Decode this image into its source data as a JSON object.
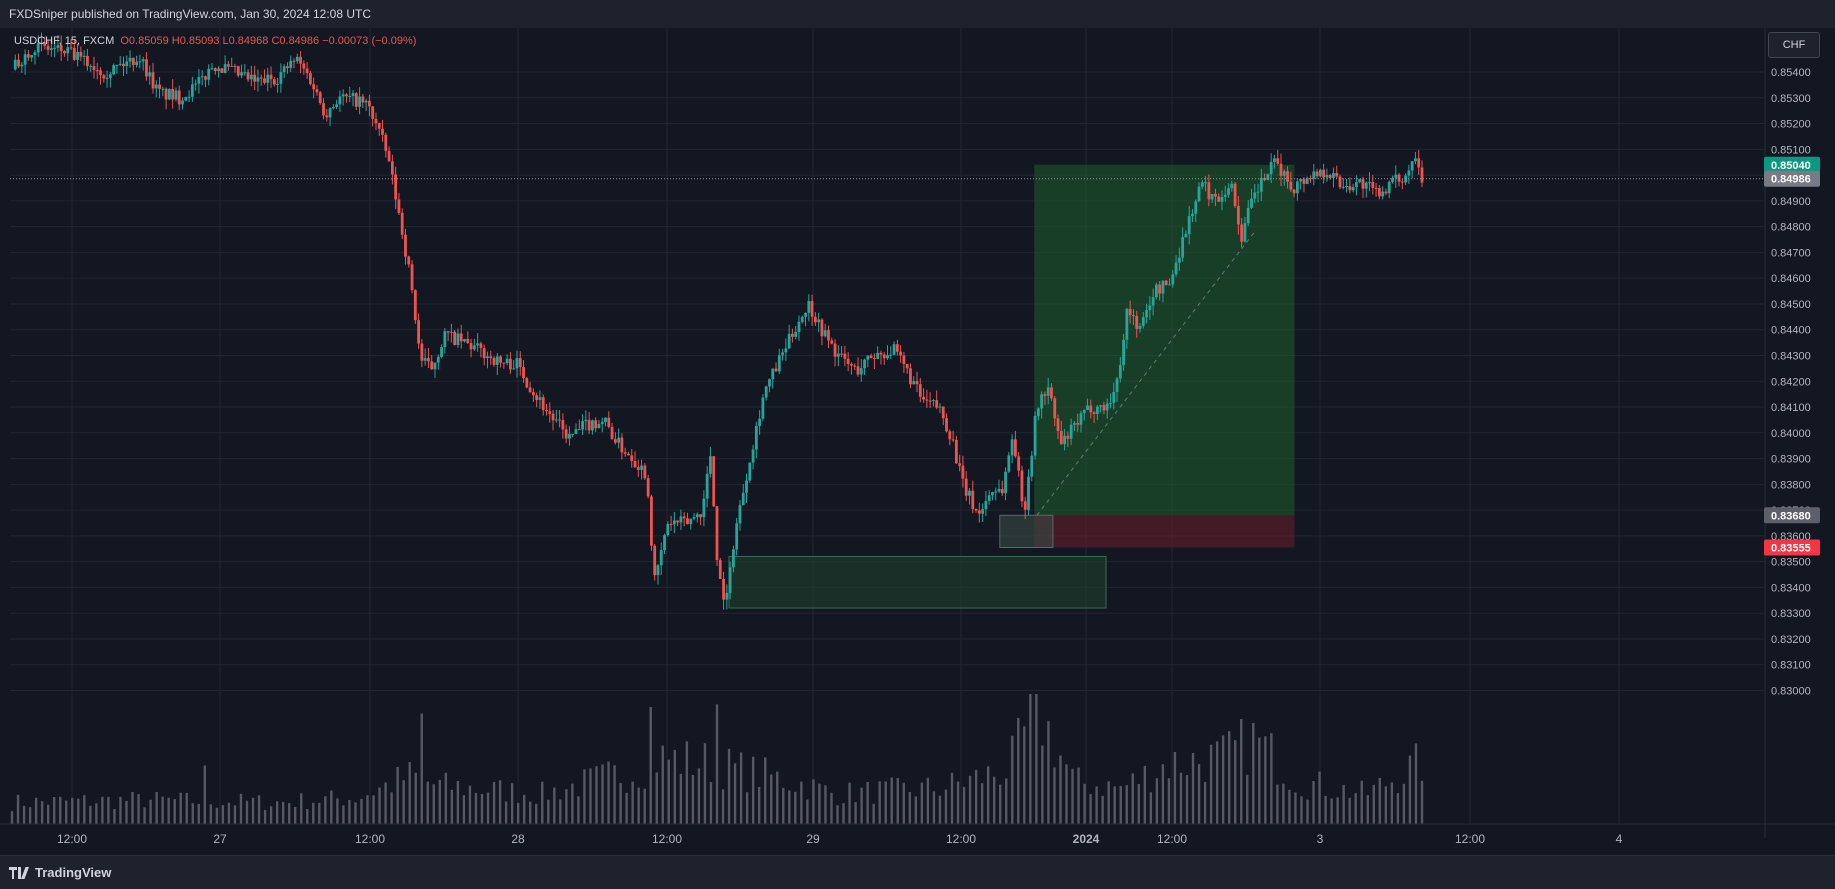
{
  "header": {
    "published": "FXDSniper published on TradingView.com, Jan 30, 2024 12:08 UTC"
  },
  "legend": {
    "symbol": "USDCHF, 15, FXCM",
    "ohlc": "O0.85059 H0.85093 L0.84968 C0.84986 −0.00073 (−0.09%)"
  },
  "currency_button": "CHF",
  "footer": {
    "logo_text": "TradingView"
  },
  "colors": {
    "background": "#131722",
    "up": "#26a69a",
    "down": "#ef5350",
    "grid": "#232733",
    "profit_zone": "#1f5e2d",
    "loss_zone": "#6b1f29",
    "take_profit_label": "#089981",
    "stop_label": "#f23645",
    "last_price_label": "#787b86",
    "volume": "#5d606b"
  },
  "chart_data": {
    "type": "candlestick",
    "symbol": "USDCHF",
    "timeframe": "15",
    "ylim": [
      0.8292,
      0.8555
    ],
    "y_ticks": [
      "0.85400",
      "0.85300",
      "0.85200",
      "0.85100",
      "0.85000",
      "0.84900",
      "0.84800",
      "0.84700",
      "0.84600",
      "0.84500",
      "0.84400",
      "0.84300",
      "0.84200",
      "0.84100",
      "0.84000",
      "0.83900",
      "0.83800",
      "0.83700",
      "0.83600",
      "0.83500",
      "0.83400",
      "0.83300",
      "0.83200",
      "0.83100",
      "0.83000"
    ],
    "x_ticks": [
      "12:00",
      "27",
      "12:00",
      "28",
      "12:00",
      "29",
      "12:00",
      "2024",
      "12:00",
      "3",
      "12:00",
      "4"
    ],
    "bold_x_ticks": [
      "2024"
    ],
    "price_labels": [
      {
        "name": "take-profit",
        "value": "0.85040",
        "price": 0.8504
      },
      {
        "name": "last-price",
        "value": "0.84986",
        "price": 0.84986
      },
      {
        "name": "entry",
        "value": "0.83680",
        "price": 0.8368
      },
      {
        "name": "stop-loss",
        "value": "0.83555",
        "price": 0.83555
      }
    ],
    "close_path": [
      {
        "t": 0,
        "p": 0.8541
      },
      {
        "t": 0.8,
        "p": 0.855
      },
      {
        "t": 2,
        "p": 0.8548
      },
      {
        "t": 3.5,
        "p": 0.854
      },
      {
        "t": 4.8,
        "p": 0.8546
      },
      {
        "t": 5.5,
        "p": 0.8532
      },
      {
        "t": 6.3,
        "p": 0.853
      },
      {
        "t": 7,
        "p": 0.8535
      },
      {
        "t": 7.6,
        "p": 0.8543
      },
      {
        "t": 8.3,
        "p": 0.854
      },
      {
        "t": 9.2,
        "p": 0.8536
      },
      {
        "t": 10,
        "p": 0.8538
      },
      {
        "t": 10.7,
        "p": 0.8545
      },
      {
        "t": 11.2,
        "p": 0.8538
      },
      {
        "t": 11.8,
        "p": 0.8524
      },
      {
        "t": 12.3,
        "p": 0.853
      },
      {
        "t": 13,
        "p": 0.8529
      },
      {
        "t": 13.4,
        "p": 0.8527
      },
      {
        "t": 13.8,
        "p": 0.8518
      },
      {
        "t": 14.2,
        "p": 0.8505
      },
      {
        "t": 14.7,
        "p": 0.8478
      },
      {
        "t": 15,
        "p": 0.846
      },
      {
        "t": 15.4,
        "p": 0.8428
      },
      {
        "t": 15.8,
        "p": 0.8425
      },
      {
        "t": 16.3,
        "p": 0.8438
      },
      {
        "t": 17,
        "p": 0.8435
      },
      {
        "t": 17.6,
        "p": 0.8432
      },
      {
        "t": 18.4,
        "p": 0.8427
      },
      {
        "t": 19,
        "p": 0.8427
      },
      {
        "t": 19.7,
        "p": 0.8415
      },
      {
        "t": 20.4,
        "p": 0.8405
      },
      {
        "t": 21,
        "p": 0.8398
      },
      {
        "t": 21.6,
        "p": 0.8403
      },
      {
        "t": 22.3,
        "p": 0.8405
      },
      {
        "t": 22.8,
        "p": 0.8396
      },
      {
        "t": 23.4,
        "p": 0.839
      },
      {
        "t": 23.9,
        "p": 0.8384
      },
      {
        "t": 24.2,
        "p": 0.8342
      },
      {
        "t": 24.7,
        "p": 0.8365
      },
      {
        "t": 25.4,
        "p": 0.8365
      },
      {
        "t": 26,
        "p": 0.837
      },
      {
        "t": 26.3,
        "p": 0.8392
      },
      {
        "t": 26.6,
        "p": 0.8345
      },
      {
        "t": 26.9,
        "p": 0.8334
      },
      {
        "t": 27.2,
        "p": 0.836
      },
      {
        "t": 27.7,
        "p": 0.8386
      },
      {
        "t": 28.3,
        "p": 0.8415
      },
      {
        "t": 28.9,
        "p": 0.8428
      },
      {
        "t": 29.6,
        "p": 0.8443
      },
      {
        "t": 30,
        "p": 0.845
      },
      {
        "t": 30.5,
        "p": 0.844
      },
      {
        "t": 31.1,
        "p": 0.843
      },
      {
        "t": 31.8,
        "p": 0.8424
      },
      {
        "t": 32.4,
        "p": 0.843
      },
      {
        "t": 33.2,
        "p": 0.8432
      },
      {
        "t": 33.7,
        "p": 0.8424
      },
      {
        "t": 34.3,
        "p": 0.8412
      },
      {
        "t": 34.9,
        "p": 0.841
      },
      {
        "t": 35.4,
        "p": 0.8398
      },
      {
        "t": 35.8,
        "p": 0.838
      },
      {
        "t": 36.4,
        "p": 0.8368
      },
      {
        "t": 36.9,
        "p": 0.8378
      },
      {
        "t": 37.3,
        "p": 0.8378
      },
      {
        "t": 37.7,
        "p": 0.84
      },
      {
        "t": 38.1,
        "p": 0.8368
      },
      {
        "t": 38.6,
        "p": 0.841
      },
      {
        "t": 39,
        "p": 0.8418
      },
      {
        "t": 39.5,
        "p": 0.8395
      },
      {
        "t": 40,
        "p": 0.8402
      },
      {
        "t": 40.6,
        "p": 0.841
      },
      {
        "t": 41.2,
        "p": 0.841
      },
      {
        "t": 41.6,
        "p": 0.8418
      },
      {
        "t": 42,
        "p": 0.8448
      },
      {
        "t": 42.5,
        "p": 0.844
      },
      {
        "t": 43,
        "p": 0.8455
      },
      {
        "t": 43.6,
        "p": 0.8458
      },
      {
        "t": 44,
        "p": 0.8472
      },
      {
        "t": 44.4,
        "p": 0.8485
      },
      {
        "t": 44.8,
        "p": 0.8497
      },
      {
        "t": 45.3,
        "p": 0.849
      },
      {
        "t": 45.9,
        "p": 0.8497
      },
      {
        "t": 46.3,
        "p": 0.8476
      },
      {
        "t": 46.7,
        "p": 0.849
      },
      {
        "t": 47.1,
        "p": 0.8498
      },
      {
        "t": 47.6,
        "p": 0.8505
      },
      {
        "t": 48.2,
        "p": 0.8495
      },
      {
        "t": 48.9,
        "p": 0.85
      },
      {
        "t": 49.5,
        "p": 0.8502
      },
      {
        "t": 50.1,
        "p": 0.8496
      },
      {
        "t": 50.8,
        "p": 0.8497
      },
      {
        "t": 51.4,
        "p": 0.8493
      },
      {
        "t": 52,
        "p": 0.8497
      },
      {
        "t": 52.5,
        "p": 0.85
      },
      {
        "t": 52.9,
        "p": 0.851
      },
      {
        "t": 53.1,
        "p": 0.84986
      }
    ],
    "volume_profile": [
      {
        "t": 0,
        "v": 0.18
      },
      {
        "t": 5,
        "v": 0.2
      },
      {
        "t": 10,
        "v": 0.18
      },
      {
        "t": 13,
        "v": 0.22
      },
      {
        "t": 15,
        "v": 0.4
      },
      {
        "t": 16,
        "v": 0.32
      },
      {
        "t": 20,
        "v": 0.25
      },
      {
        "t": 23.5,
        "v": 0.45
      },
      {
        "t": 24.3,
        "v": 0.55
      },
      {
        "t": 26.5,
        "v": 0.5
      },
      {
        "t": 27.3,
        "v": 0.45
      },
      {
        "t": 29.5,
        "v": 0.35
      },
      {
        "t": 31,
        "v": 0.25
      },
      {
        "t": 35,
        "v": 0.3
      },
      {
        "t": 37.5,
        "v": 0.45
      },
      {
        "t": 38.6,
        "v": 0.95
      },
      {
        "t": 40,
        "v": 0.35
      },
      {
        "t": 41.8,
        "v": 0.3
      },
      {
        "t": 43.5,
        "v": 0.5
      },
      {
        "t": 45.6,
        "v": 0.55
      },
      {
        "t": 46.8,
        "v": 0.7
      },
      {
        "t": 48.5,
        "v": 0.35
      },
      {
        "t": 51,
        "v": 0.25
      },
      {
        "t": 53,
        "v": 0.5
      }
    ],
    "volume_spikes": [
      {
        "t": 15.4,
        "v": 0.85
      },
      {
        "t": 24.0,
        "v": 0.9
      },
      {
        "t": 26.6,
        "v": 0.92
      },
      {
        "t": 38.6,
        "v": 1.0
      },
      {
        "t": 7.2,
        "v": 0.45
      }
    ],
    "zones": [
      {
        "name": "profit-zone",
        "t1": 38.5,
        "t2": 48.3,
        "p1": 0.8368,
        "p2": 0.8504
      },
      {
        "name": "loss-zone",
        "t1": 38.5,
        "t2": 48.3,
        "p1": 0.83555,
        "p2": 0.8368
      },
      {
        "name": "demand-zone",
        "t1": 27.0,
        "t2": 41.2,
        "p1": 0.8332,
        "p2": 0.8352
      },
      {
        "name": "entry-box",
        "t1": 37.2,
        "t2": 39.2,
        "p1": 0.83555,
        "p2": 0.8368
      }
    ],
    "trend_line": {
      "t1": 38.6,
      "p1": 0.8368,
      "t2": 46.8,
      "p2": 0.8478
    },
    "grid": true
  }
}
